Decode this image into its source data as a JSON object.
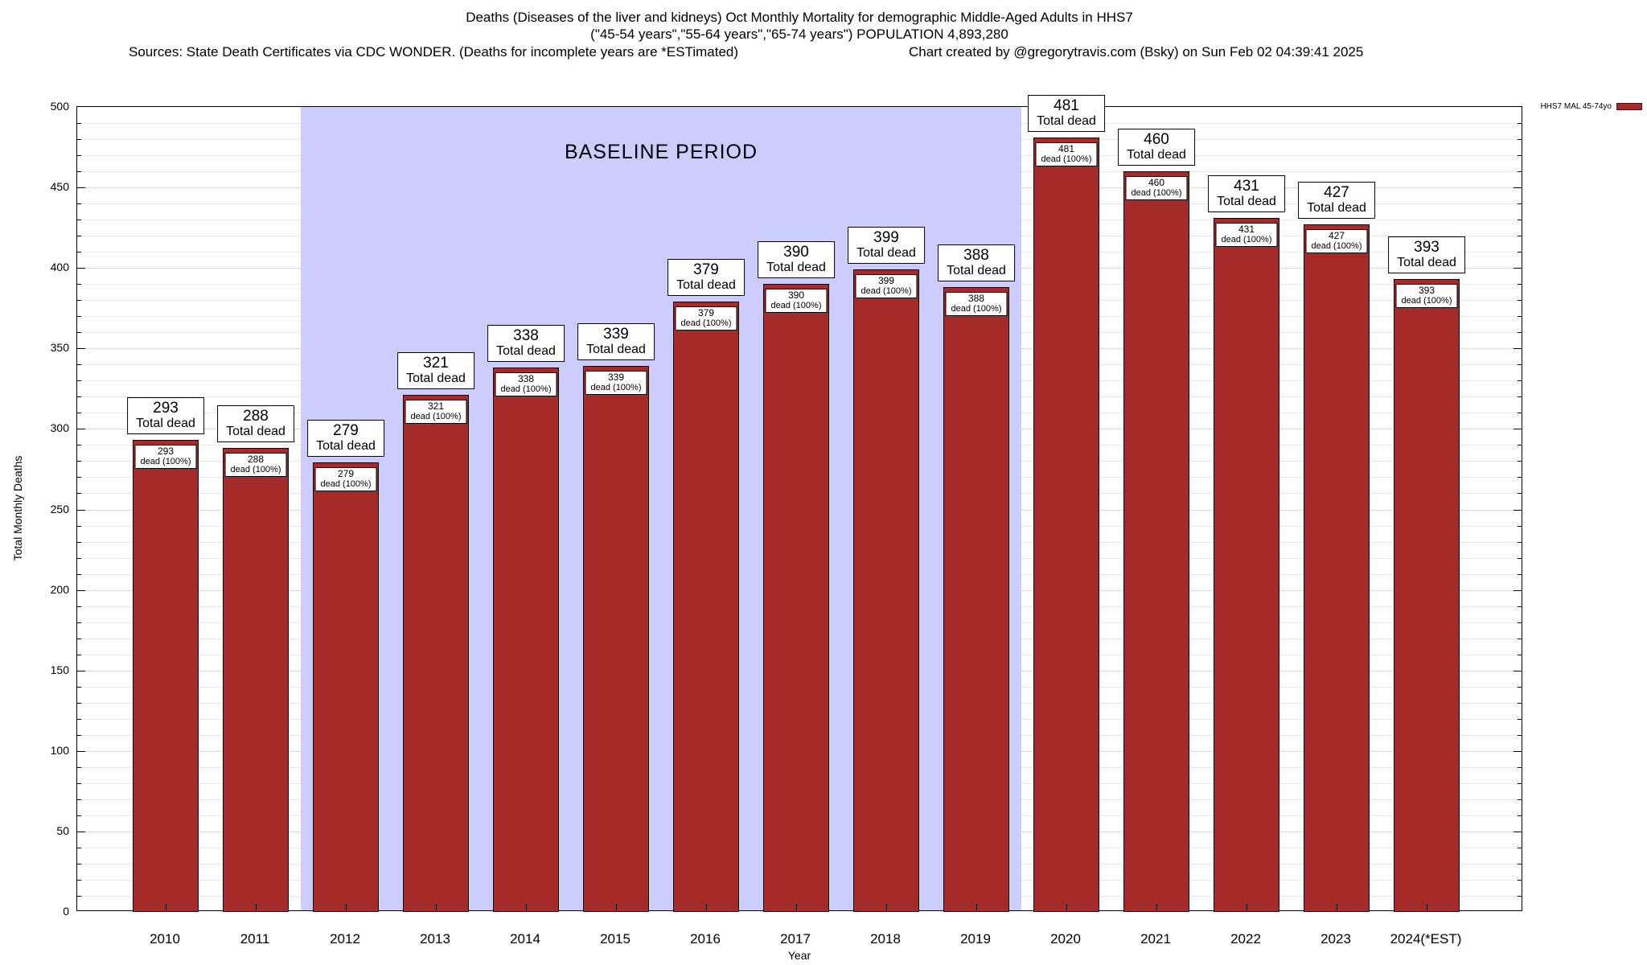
{
  "chart_data": {
    "type": "bar",
    "title": "Deaths (Diseases of the liver and kidneys) Oct Monthly Mortality for demographic Middle-Aged Adults in HHS7",
    "subtitle": "(\"45-54 years\",\"55-64 years\",\"65-74 years\") POPULATION 4,893,280",
    "sources": "Sources: State Death Certificates via CDC WONDER. (Deaths for incomplete years are *ESTimated)",
    "credit": "Chart created by @gregorytravis.com (Bsky) on Sun Feb 02 04:39:41 2025",
    "xlabel": "Year",
    "ylabel": "Total Monthly Deaths",
    "ylim": [
      0,
      500
    ],
    "ytick_step": 50,
    "minor_grid_step": 10,
    "grid": "horizontal",
    "categories": [
      "2010",
      "2011",
      "2012",
      "2013",
      "2014",
      "2015",
      "2016",
      "2017",
      "2018",
      "2019",
      "2020",
      "2021",
      "2022",
      "2023",
      "2024(*EST)"
    ],
    "values": [
      293,
      288,
      279,
      321,
      338,
      339,
      379,
      390,
      399,
      388,
      481,
      460,
      431,
      427,
      393
    ],
    "bar_color": "#a52a2a",
    "bar_label_top_suffix": "Total dead",
    "bar_label_inner_suffix": "dead (100%)",
    "baseline_region": {
      "label": "BASELINE PERIOD",
      "start_category": "2012",
      "end_category": "2019",
      "start_index": 2,
      "end_index": 9,
      "color": "#ccccff"
    },
    "legend": {
      "label": "HHS7 MAL 45-74yo",
      "color": "#a52a2a",
      "position": "top-right"
    }
  }
}
